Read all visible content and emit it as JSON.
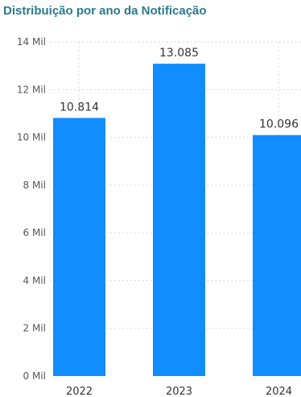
{
  "chart_data": {
    "type": "bar",
    "title": "Distribuição por ano da Notificação",
    "categories": [
      "2022",
      "2023",
      "2024"
    ],
    "values": [
      10814,
      13085,
      10096
    ],
    "data_labels": [
      "10.814",
      "13.085",
      "10.096"
    ],
    "ylim": [
      0,
      14000
    ],
    "y_ticks": [
      0,
      2000,
      4000,
      6000,
      8000,
      10000,
      12000,
      14000
    ],
    "y_tick_labels": [
      "0 Mil",
      "2 Mil",
      "4 Mil",
      "6 Mil",
      "8 Mil",
      "10 Mil",
      "12 Mil",
      "14 Mil"
    ],
    "xlabel": "",
    "ylabel": "",
    "grid": true,
    "bar_color": "#118dff"
  }
}
